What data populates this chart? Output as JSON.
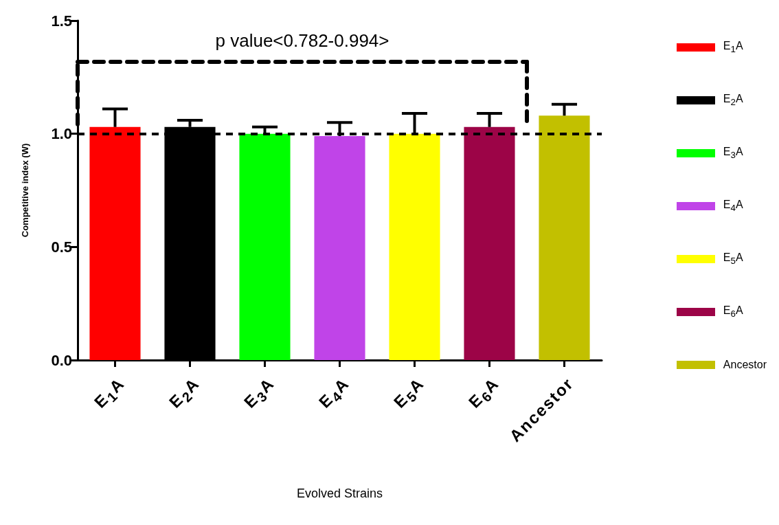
{
  "chart_data": {
    "type": "bar",
    "annotations": [
      "p value<0.782-0.994>"
    ],
    "xlabel": "Evolved Strains",
    "ylabel": "Competitive index (W)",
    "categories": [
      "E$_{1}$A",
      "E$_{2}$A",
      "E$_{3}$A",
      "E$_{4}$A",
      "E$_{5}$A",
      "E$_{6}$A",
      "Ancestor"
    ],
    "series": [
      {
        "name": "E$_{1}$A",
        "color": "#ff0000",
        "values": [
          1.03,
          null,
          null,
          null,
          null,
          null,
          null
        ],
        "errors": [
          [
            1.03,
            1.11
          ],
          null,
          null,
          null,
          null,
          null,
          null
        ]
      },
      {
        "name": "E$_{2}$A",
        "color": "#000000",
        "values": [
          null,
          1.03,
          null,
          null,
          null,
          null,
          null
        ],
        "errors": [
          null,
          [
            1.03,
            1.06
          ],
          null,
          null,
          null,
          null,
          null
        ]
      },
      {
        "name": "E$_{3}$A",
        "color": "#00ff00",
        "values": [
          null,
          null,
          1.0,
          null,
          null,
          null,
          null
        ],
        "errors": [
          null,
          null,
          [
            1.0,
            1.03
          ],
          null,
          null,
          null,
          null
        ]
      },
      {
        "name": "E$_{4}$A",
        "color": "#c044e8",
        "values": [
          null,
          null,
          null,
          0.99,
          null,
          null,
          null
        ],
        "errors": [
          null,
          null,
          null,
          [
            0.99,
            1.05
          ],
          null,
          null,
          null
        ]
      },
      {
        "name": "E$_{5}$A",
        "color": "#ffff00",
        "values": [
          null,
          null,
          null,
          null,
          1.0,
          null,
          null
        ],
        "errors": [
          null,
          null,
          null,
          null,
          [
            1.0,
            1.09
          ],
          null,
          null
        ]
      },
      {
        "name": "E$_{6}$A",
        "color": "#9c0447",
        "values": [
          null,
          null,
          null,
          null,
          null,
          1.03,
          null
        ],
        "errors": [
          null,
          null,
          null,
          null,
          null,
          [
            1.03,
            1.09
          ],
          null
        ]
      },
      {
        "name": "Ancestor",
        "color": "#c2c000",
        "values": [
          null,
          null,
          null,
          null,
          null,
          null,
          1.08
        ],
        "errors": [
          null,
          null,
          null,
          null,
          null,
          null,
          [
            1.08,
            1.13
          ]
        ]
      }
    ],
    "ylim": [
      0,
      1.5
    ],
    "yticks": [
      {
        "value": 0,
        "label": "0.0"
      },
      {
        "value": 0.5,
        "label": "0.5"
      },
      {
        "value": 1,
        "label": "1.0"
      },
      {
        "value": 1.5,
        "label": "1.5"
      }
    ],
    "ref_lines": [
      {
        "axis": "y",
        "value": 1,
        "color": "#000000",
        "line_style": "dashed"
      }
    ],
    "grid": false,
    "legend": "right"
  }
}
